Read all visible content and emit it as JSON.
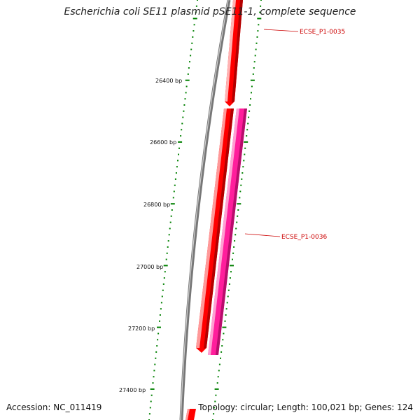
{
  "map": {
    "title": "Escherichia coli SE11 plasmid pSE11-1, complete sequence",
    "accession_text": "Accession: NC_011419",
    "summary_text": "Topology: circular; Length: 100,021 bp; Genes: 124",
    "tick_labels": [
      "26400 bp",
      "26600 bp",
      "26800 bp",
      "27000 bp",
      "27200 bp",
      "27400 bp"
    ],
    "features": [
      {
        "name": "ECSE_P1-0035",
        "strand": "forward",
        "color": "#ff0000"
      },
      {
        "name": "ECSE_P1-0036",
        "strand": "forward",
        "color": "#ff0000"
      },
      {
        "name": "",
        "strand": "reverse",
        "color": "#ff1e9c"
      },
      {
        "name": "",
        "strand": "forward",
        "color": "#ff0000"
      }
    ],
    "colors": {
      "backbone": "#777777",
      "ticks": "#008000",
      "label_line": "#cc0000"
    }
  }
}
